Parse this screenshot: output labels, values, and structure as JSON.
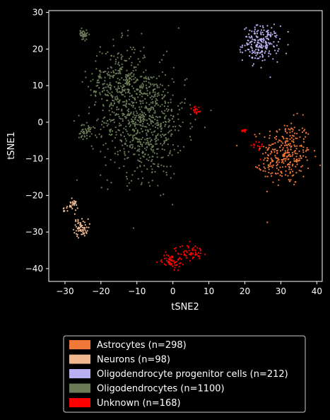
{
  "chart_data": {
    "type": "scatter",
    "title": "",
    "xlabel": "tSNE2",
    "ylabel": "tSNE1",
    "xlim": [
      -34.5,
      41.5
    ],
    "ylim": [
      -43.5,
      30.5
    ],
    "xticks": [
      -30,
      -20,
      -10,
      0,
      10,
      20,
      30,
      40
    ],
    "yticks": [
      -40,
      -30,
      -20,
      -10,
      0,
      10,
      20,
      30
    ],
    "grid": false,
    "legend_position": "bottom-center",
    "series": [
      {
        "name": "Astrocytes (n=298)",
        "color": "#f07838",
        "count": 298,
        "clusters": [
          {
            "n": 278,
            "cx": 31.5,
            "cy": -8.5,
            "sx": 3.4,
            "sy": 4.5
          },
          {
            "n": 20,
            "cx": 26.5,
            "cy": -12.5,
            "sx": 1.2,
            "sy": 1.5
          }
        ]
      },
      {
        "name": "Neurons (n=98)",
        "color": "#f0b890",
        "count": 98,
        "clusters": [
          {
            "n": 62,
            "cx": -25.5,
            "cy": -28.8,
            "sx": 1.0,
            "sy": 1.2
          },
          {
            "n": 30,
            "cx": -28.0,
            "cy": -22.8,
            "sx": 0.8,
            "sy": 0.8
          },
          {
            "n": 6,
            "cx": -30.5,
            "cy": -24.0,
            "sx": 0.4,
            "sy": 0.4
          }
        ]
      },
      {
        "name": "Oligodendrocyte progenitor cells (n=212)",
        "color": "#b8b0f0",
        "count": 212,
        "clusters": [
          {
            "n": 211,
            "cx": 24.5,
            "cy": 21.5,
            "sx": 2.5,
            "sy": 2.4
          },
          {
            "n": 1,
            "cx": 27.2,
            "cy": 12.5,
            "sx": 0.2,
            "sy": 0.2
          }
        ]
      },
      {
        "name": "Oligodendrocytes (n=1100)",
        "color": "#6b7b58",
        "count": 1100,
        "clusters": [
          {
            "n": 720,
            "cx": -8.0,
            "cy": 0.0,
            "sx": 5.8,
            "sy": 7.5
          },
          {
            "n": 300,
            "cx": -15.0,
            "cy": 10.5,
            "sx": 4.2,
            "sy": 5.5
          },
          {
            "n": 40,
            "cx": -24.8,
            "cy": 24.0,
            "sx": 0.6,
            "sy": 0.7
          },
          {
            "n": 40,
            "cx": -24.5,
            "cy": -2.5,
            "sx": 0.9,
            "sy": 1.0
          }
        ]
      },
      {
        "name": "Unknown (n=168)",
        "color": "#ff0000",
        "count": 168,
        "clusters": [
          {
            "n": 60,
            "cx": -0.5,
            "cy": -38.0,
            "sx": 1.3,
            "sy": 1.0
          },
          {
            "n": 60,
            "cx": 4.5,
            "cy": -35.5,
            "sx": 2.0,
            "sy": 1.0
          },
          {
            "n": 18,
            "cx": 6.5,
            "cy": 3.2,
            "sx": 0.7,
            "sy": 0.8
          },
          {
            "n": 14,
            "cx": 19.8,
            "cy": -2.3,
            "sx": 0.5,
            "sy": 0.3
          },
          {
            "n": 16,
            "cx": 23.0,
            "cy": -7.0,
            "sx": 1.0,
            "sy": 1.2
          }
        ]
      }
    ]
  }
}
